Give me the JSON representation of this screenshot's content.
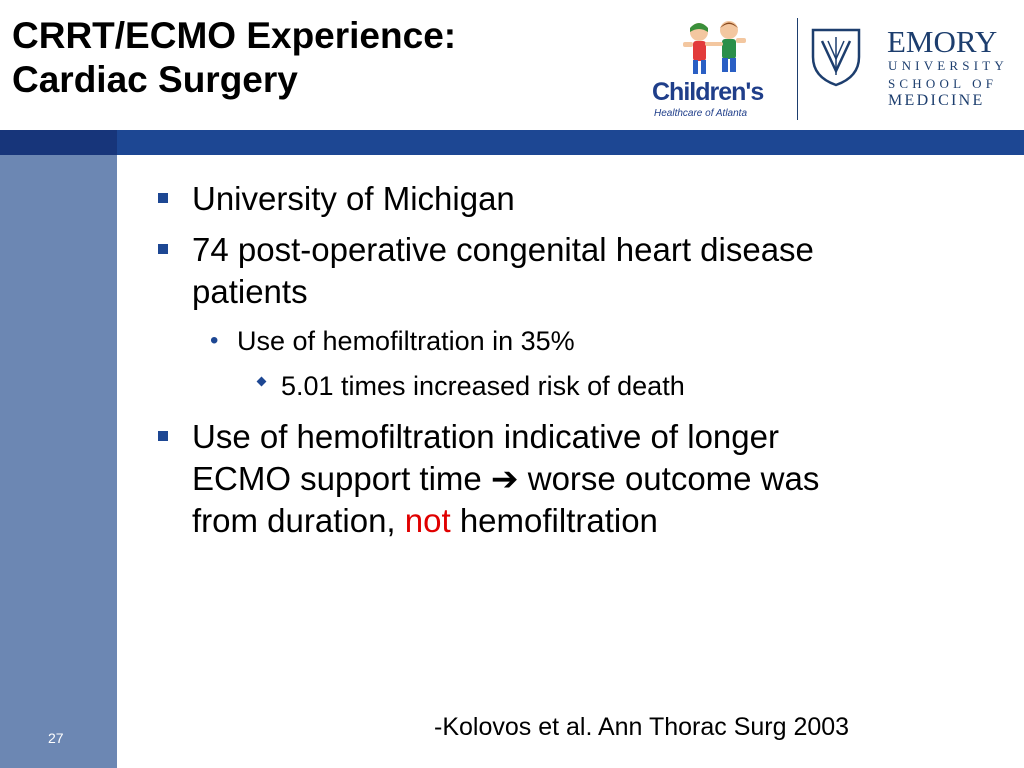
{
  "slide": {
    "title_line1": "CRRT/ECMO Experience:",
    "title_line2": "Cardiac Surgery",
    "number": "27"
  },
  "logos": {
    "childrens_name": "Children's",
    "childrens_sub": "Healthcare of Atlanta",
    "emory_name": "EMORY",
    "emory_line1": "UNIVERSITY",
    "emory_line2": "SCHOOL OF",
    "emory_line3": "MEDICINE"
  },
  "bullets": {
    "b1": "University of Michigan",
    "b2_line1": "74 post-operative congenital heart disease",
    "b2_line2": "patients",
    "b2_sub": "Use of hemofiltration in 35%",
    "b2_subsub": "5.01 times increased risk of death",
    "b3_line1": "Use of hemofiltration indicative of longer",
    "b3_line2_a": "ECMO support time",
    "b3_arrow": "➔",
    "b3_line2_b": "worse outcome was",
    "b3_line3_a": "from duration,",
    "b3_emph": "not",
    "b3_line3_b": "hemofiltration"
  },
  "citation": "-Kolovos et al. Ann Thorac Surg 2003",
  "colors": {
    "accent_blue": "#1d4793",
    "sidebar": "#6c87b3",
    "emphasis_red": "#e00000",
    "emory_navy": "#1d3e6e"
  }
}
